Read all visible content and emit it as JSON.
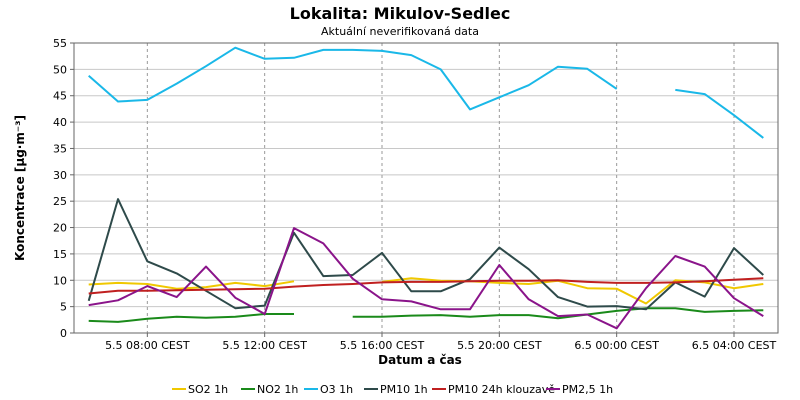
{
  "chart_data": {
    "type": "line",
    "title": "Lokalita: Mikulov-Sedlec",
    "subtitle": "Aktuální neverifikovaná data",
    "xlabel": "Datum a čas",
    "ylabel": "Koncentrace [µg·m⁻³]",
    "ylim": [
      0,
      55
    ],
    "yticks": [
      0,
      5,
      10,
      15,
      20,
      25,
      30,
      35,
      40,
      45,
      50,
      55
    ],
    "xticks": [
      {
        "label": "5.5 08:00 CEST",
        "x": 8
      },
      {
        "label": "5.5 12:00 CEST",
        "x": 12
      },
      {
        "label": "5.5 16:00 CEST",
        "x": 16
      },
      {
        "label": "5.5 20:00 CEST",
        "x": 20
      },
      {
        "label": "6.5 00:00 CEST",
        "x": 24
      },
      {
        "label": "6.5 04:00 CEST",
        "x": 28
      }
    ],
    "xlim": [
      5.5,
      29.5
    ],
    "x": [
      6,
      7,
      8,
      9,
      10,
      11,
      12,
      13,
      14,
      15,
      16,
      17,
      18,
      19,
      20,
      21,
      22,
      23,
      24,
      25,
      26,
      27,
      28,
      29
    ],
    "grid": true,
    "legend_position": "bottom",
    "series": [
      {
        "name": "SO2 1h",
        "color": "#f0c800",
        "values": [
          9.2,
          9.5,
          9.3,
          8.4,
          8.7,
          9.5,
          8.9,
          9.8,
          null,
          null,
          9.7,
          10.4,
          9.9,
          9.8,
          9.5,
          9.3,
          9.9,
          8.5,
          8.4,
          5.6,
          10.0,
          9.6,
          8.5,
          9.3
        ]
      },
      {
        "name": "NO2 1h",
        "color": "#1a8a1a",
        "values": [
          2.3,
          2.1,
          2.7,
          3.1,
          2.9,
          3.1,
          3.6,
          3.6,
          null,
          3.1,
          3.1,
          3.3,
          3.4,
          3.1,
          3.4,
          3.4,
          2.8,
          3.5,
          4.2,
          4.7,
          4.7,
          4.0,
          4.2,
          4.3
        ]
      },
      {
        "name": "O3 1h",
        "color": "#1ab8e8",
        "values": [
          48.8,
          43.9,
          44.2,
          47.3,
          50.6,
          54.1,
          52.0,
          52.2,
          53.7,
          53.7,
          53.5,
          52.7,
          50.0,
          42.4,
          44.7,
          47.0,
          50.5,
          50.1,
          46.3,
          null,
          46.1,
          45.3,
          41.3,
          37.0
        ]
      },
      {
        "name": "PM10 1h",
        "color": "#2e4a4a",
        "values": [
          6.1,
          25.4,
          13.6,
          11.3,
          8.0,
          4.7,
          5.2,
          19.0,
          10.8,
          11.0,
          15.2,
          7.9,
          7.9,
          10.2,
          16.2,
          12.1,
          6.8,
          5.0,
          5.1,
          4.5,
          9.6,
          6.9,
          16.1,
          11.0
        ]
      },
      {
        "name": "PM10 24h klouzavě",
        "color": "#c02020",
        "values": [
          7.5,
          8.0,
          8.0,
          8.1,
          8.2,
          8.3,
          8.4,
          8.8,
          9.1,
          9.3,
          9.6,
          9.7,
          9.7,
          9.8,
          9.9,
          9.9,
          10.0,
          9.7,
          9.5,
          9.5,
          9.6,
          9.8,
          10.1,
          10.4
        ]
      },
      {
        "name": "PM2,5 1h",
        "color": "#8a148a",
        "values": [
          5.3,
          6.2,
          8.9,
          6.8,
          12.6,
          6.7,
          3.6,
          19.9,
          17.0,
          10.3,
          6.4,
          6.0,
          4.5,
          4.5,
          12.9,
          6.4,
          3.2,
          3.5,
          0.9,
          8.5,
          14.6,
          12.6,
          6.6,
          3.2
        ]
      }
    ]
  }
}
